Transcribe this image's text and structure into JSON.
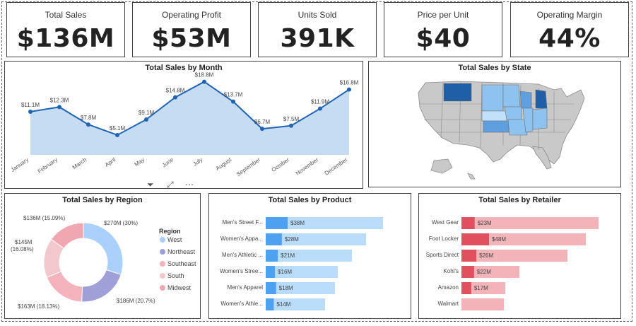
{
  "kpis": [
    {
      "label": "Total Sales",
      "value": "$136M"
    },
    {
      "label": "Operating Profit",
      "value": "$53M"
    },
    {
      "label": "Units Sold",
      "value": "391K"
    },
    {
      "label": "Price per Unit",
      "value": "$40"
    },
    {
      "label": "Operating Margin",
      "value": "44%"
    }
  ],
  "panels": {
    "month_title": "Total Sales by Month",
    "state_title": "Total Sales by State",
    "region_title": "Total Sales by Region",
    "product_title": "Total Sales by Product",
    "retailer_title": "Total Sales by Retailer"
  },
  "header_icons": [
    "filter-icon",
    "focus-mode-icon",
    "more-options-icon"
  ],
  "chart_data": [
    {
      "type": "area",
      "title": "Total Sales by Month",
      "categories": [
        "January",
        "February",
        "March",
        "April",
        "May",
        "June",
        "July",
        "August",
        "September",
        "October",
        "November",
        "December"
      ],
      "values": [
        11.1,
        12.3,
        7.8,
        5.1,
        9.1,
        14.8,
        18.8,
        13.7,
        6.7,
        7.5,
        11.9,
        16.8
      ],
      "data_labels": [
        "$11.1M",
        "$12.3M",
        "$7.8M",
        "$5.1M",
        "$9.1M",
        "$14.8M",
        "$18.8M",
        "$13.7M",
        "$6.7M",
        "$7.5M",
        "$11.9M",
        "$16.8M"
      ],
      "ylim": [
        0,
        20
      ],
      "colors": {
        "line": "#1f63b5",
        "fill": "#c6dcf2"
      }
    },
    {
      "type": "pie",
      "title": "Total Sales by Region",
      "legend_title": "Region",
      "legend_position": "right",
      "categories": [
        "West",
        "Northeast",
        "Southeast",
        "South",
        "Midwest"
      ],
      "values": [
        270,
        186,
        163,
        145,
        136
      ],
      "data_labels": [
        "$270M (30%)",
        "$186M (20.7%)",
        "$163M (18.13%)",
        "$145M (16.08%)",
        "$136M (15.09%)"
      ],
      "colors": [
        "#a9d1fb",
        "#9fa0d8",
        "#f5b3bd",
        "#f2c8cc",
        "#f0a7b2"
      ]
    },
    {
      "type": "bar",
      "title": "Total Sales by Product",
      "categories": [
        "Men's Street F...",
        "Women's Appa...",
        "Men's Athletic ...",
        "Women's Stree...",
        "Men's Apparel",
        "Women's Athle..."
      ],
      "values": [
        38,
        28,
        21,
        16,
        18,
        14
      ],
      "data_labels": [
        "$38M",
        "$28M",
        "$21M",
        "$16M",
        "$18M",
        "$14M"
      ],
      "colors": {
        "bar": "#4ea1f0",
        "background": "#b8dcfa"
      }
    },
    {
      "type": "bar",
      "title": "Total Sales by Retailer",
      "categories": [
        "West Gear",
        "Foot Locker",
        "Sports Direct",
        "Kohl's",
        "Amazon",
        "Walmart"
      ],
      "values": [
        23,
        48,
        26,
        22,
        17,
        0
      ],
      "data_labels": [
        "$23M",
        "$48M",
        "$26M",
        "$22M",
        "$17M",
        ""
      ],
      "colors": {
        "bar": "#e0505e",
        "background": "#f2b3b9"
      }
    }
  ]
}
